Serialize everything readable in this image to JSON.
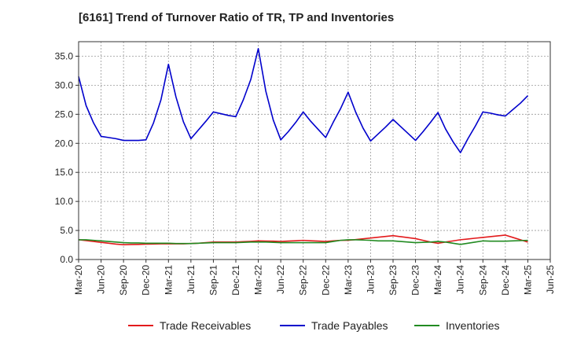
{
  "chart_data": {
    "type": "line",
    "title": "[6161]  Trend of Turnover Ratio of TR, TP and Inventories",
    "xlabel": "",
    "ylabel": "",
    "ylim": [
      0,
      37.5
    ],
    "yticks": [
      "0.0",
      "5.0",
      "10.0",
      "15.0",
      "20.0",
      "25.0",
      "30.0",
      "35.0"
    ],
    "ytick_values": [
      0,
      5,
      10,
      15,
      20,
      25,
      30,
      35
    ],
    "xticks": [
      "Mar-20",
      "Jun-20",
      "Sep-20",
      "Dec-20",
      "Mar-21",
      "Jun-21",
      "Sep-21",
      "Dec-21",
      "Mar-22",
      "Jun-22",
      "Sep-22",
      "Dec-22",
      "Mar-23",
      "Jun-23",
      "Sep-23",
      "Dec-23",
      "Mar-24",
      "Jun-24",
      "Sep-24",
      "Dec-24",
      "Mar-25",
      "Jun-25"
    ],
    "x": [
      "Mar-20",
      "Apr-20",
      "May-20",
      "Jun-20",
      "Jul-20",
      "Aug-20",
      "Sep-20",
      "Oct-20",
      "Nov-20",
      "Dec-20",
      "Jan-21",
      "Feb-21",
      "Mar-21",
      "Apr-21",
      "May-21",
      "Jun-21",
      "Jul-21",
      "Aug-21",
      "Sep-21",
      "Oct-21",
      "Nov-21",
      "Dec-21",
      "Jan-22",
      "Feb-22",
      "Mar-22",
      "Apr-22",
      "May-22",
      "Jun-22",
      "Jul-22",
      "Aug-22",
      "Sep-22",
      "Oct-22",
      "Nov-22",
      "Dec-22",
      "Jan-23",
      "Feb-23",
      "Mar-23",
      "Apr-23",
      "May-23",
      "Jun-23",
      "Jul-23",
      "Aug-23",
      "Sep-23",
      "Oct-23",
      "Nov-23",
      "Dec-23",
      "Jan-24",
      "Feb-24",
      "Mar-24",
      "Apr-24",
      "May-24",
      "Jun-24",
      "Jul-24",
      "Aug-24",
      "Sep-24",
      "Oct-24",
      "Nov-24",
      "Dec-24",
      "Jan-25",
      "Feb-25",
      "Mar-25"
    ],
    "grid": true,
    "legend_position": "bottom",
    "series": [
      {
        "name": "Trade Receivables",
        "color": "#e31a1c",
        "values": [
          3.4,
          3.25,
          3.1,
          2.95,
          2.8,
          2.65,
          2.55,
          2.58,
          2.6,
          2.65,
          2.67,
          2.7,
          2.7,
          2.7,
          2.7,
          2.75,
          2.8,
          2.9,
          3.0,
          3.0,
          3.0,
          3.0,
          3.07,
          3.13,
          3.2,
          3.18,
          3.15,
          3.1,
          3.17,
          3.23,
          3.3,
          3.23,
          3.17,
          3.1,
          3.2,
          3.3,
          3.3,
          3.43,
          3.57,
          3.7,
          3.83,
          3.97,
          4.1,
          3.93,
          3.77,
          3.6,
          3.3,
          3.0,
          2.8,
          3.0,
          3.2,
          3.4,
          3.53,
          3.67,
          3.8,
          3.93,
          4.07,
          4.2,
          3.8,
          3.4,
          3.0
        ]
      },
      {
        "name": "Trade Payables",
        "color": "#0000cc",
        "values": [
          31.5,
          26.5,
          23.5,
          21.2,
          21.0,
          20.8,
          20.5,
          20.5,
          20.5,
          20.6,
          23.5,
          27.5,
          33.6,
          28.0,
          23.7,
          20.8,
          22.3,
          23.8,
          25.4,
          25.1,
          24.8,
          24.6,
          27.5,
          31.0,
          36.3,
          29.0,
          24.0,
          20.6,
          22.0,
          23.6,
          25.4,
          23.8,
          22.4,
          21.0,
          23.6,
          26.0,
          28.8,
          25.4,
          22.6,
          20.4,
          21.6,
          22.8,
          24.1,
          22.9,
          21.7,
          20.5,
          22.0,
          23.6,
          25.3,
          22.5,
          20.3,
          18.4,
          20.8,
          23.0,
          25.4,
          25.2,
          24.9,
          24.7,
          25.8,
          26.9,
          28.2
        ]
      },
      {
        "name": "Inventories",
        "color": "#228b22",
        "values": [
          3.4,
          3.4,
          3.3,
          3.2,
          3.1,
          3.0,
          2.9,
          2.85,
          2.85,
          2.8,
          2.8,
          2.8,
          2.8,
          2.75,
          2.75,
          2.75,
          2.8,
          2.85,
          2.9,
          2.9,
          2.9,
          2.9,
          2.95,
          3.0,
          3.0,
          3.0,
          2.95,
          2.9,
          2.9,
          2.9,
          2.9,
          2.9,
          2.9,
          2.9,
          3.1,
          3.3,
          3.4,
          3.4,
          3.35,
          3.3,
          3.2,
          3.2,
          3.2,
          3.1,
          3.0,
          2.9,
          2.95,
          3.0,
          3.1,
          3.0,
          2.8,
          2.6,
          2.8,
          3.0,
          3.2,
          3.15,
          3.15,
          3.15,
          3.2,
          3.25,
          3.3
        ]
      }
    ]
  }
}
